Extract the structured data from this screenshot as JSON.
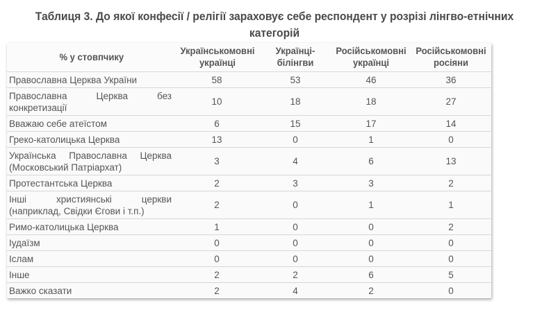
{
  "title": "Таблиця 3. До якої конфесії / релігії зараховує себе респондент у розрізі лінгво-етнічних категорій",
  "table": {
    "headers": [
      "% у стовпчику",
      "Українськомовні українці",
      "Українці-білінгви",
      "Російськомовні українці",
      "Російськомовні росіяни"
    ],
    "rows": [
      {
        "label": "Православна Церква України",
        "values": [
          "58",
          "53",
          "46",
          "36"
        ]
      },
      {
        "label": "Православна Церква без конкретизації",
        "values": [
          "10",
          "18",
          "18",
          "27"
        ]
      },
      {
        "label": "Вважаю себе атеїстом",
        "values": [
          "6",
          "15",
          "17",
          "14"
        ]
      },
      {
        "label": "Греко-католицька Церква",
        "values": [
          "13",
          "0",
          "1",
          "0"
        ]
      },
      {
        "label": "Українська Православна Церква (Московський Патріархат)",
        "values": [
          "3",
          "4",
          "6",
          "13"
        ]
      },
      {
        "label": "Протестантська Церква",
        "values": [
          "2",
          "3",
          "3",
          "2"
        ]
      },
      {
        "label": "Інші християнські церкви (наприклад, Свідки Єгови і т.п.)",
        "values": [
          "2",
          "0",
          "1",
          "1"
        ]
      },
      {
        "label": "Римо-католицька Церква",
        "values": [
          "1",
          "0",
          "0",
          "2"
        ]
      },
      {
        "label": "Іудаїзм",
        "values": [
          "0",
          "0",
          "0",
          "0"
        ]
      },
      {
        "label": "Іслам",
        "values": [
          "0",
          "0",
          "0",
          "0"
        ]
      },
      {
        "label": "Інше",
        "values": [
          "2",
          "2",
          "6",
          "5"
        ]
      },
      {
        "label": "Важко сказати",
        "values": [
          "2",
          "4",
          "2",
          "0"
        ]
      }
    ]
  },
  "colors": {
    "title": "#4a4a4a",
    "text": "#555555",
    "border": "#d7d7d7",
    "table_bg": "#fafafa"
  }
}
